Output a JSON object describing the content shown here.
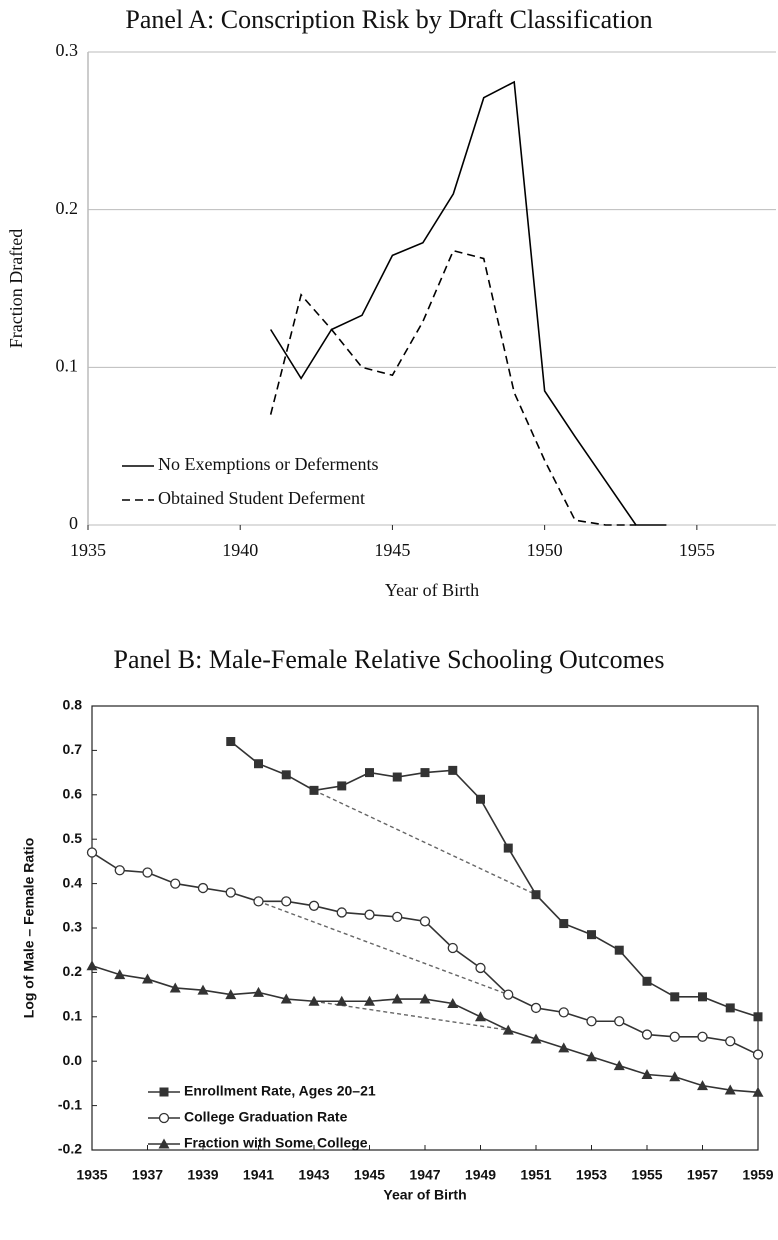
{
  "chart_data": [
    {
      "type": "line",
      "title": "Panel A: Conscription Risk by Draft Classification",
      "xlabel": "Year of Birth",
      "ylabel": "Fraction Drafted",
      "xlim": [
        1935,
        1957.6
      ],
      "xticks": [
        1935,
        1940,
        1945,
        1950,
        1955
      ],
      "ylim": [
        0,
        0.3
      ],
      "yticks": [
        {
          "value": 0,
          "label": "0"
        },
        0.1,
        0.2,
        0.3
      ],
      "grid": true,
      "frame": false,
      "legend": "lower left",
      "series": [
        {
          "name": "No Exemptions or Deferments",
          "color": "#000000",
          "line_style": "solid",
          "marker": "none",
          "x": [
            1941,
            1942,
            1943,
            1944,
            1945,
            1946,
            1947,
            1948,
            1949,
            1950,
            1951,
            1952,
            1953,
            1954
          ],
          "values": [
            0.124,
            0.093,
            0.124,
            0.133,
            0.171,
            0.179,
            0.21,
            0.271,
            0.281,
            0.085,
            0.056,
            0.028,
            0,
            0
          ]
        },
        {
          "name": "Obtained Student Deferment",
          "color": "#000000",
          "line_style": "dashed",
          "marker": "none",
          "x": [
            1941,
            1942,
            1943,
            1944,
            1945,
            1946,
            1947,
            1948,
            1949,
            1950,
            1951,
            1952,
            1953
          ],
          "values": [
            0.07,
            0.146,
            0.124,
            0.1,
            0.095,
            0.129,
            0.174,
            0.169,
            0.084,
            0.041,
            0.003,
            0,
            0
          ]
        }
      ]
    },
    {
      "type": "line",
      "title": "Panel B: Male-Female Relative Schooling Outcomes",
      "xlabel": "Year of Birth",
      "ylabel": "Log of Male – Female Ratio",
      "xlim": [
        1935,
        1959
      ],
      "xticks": [
        1935,
        1937,
        1939,
        1941,
        1943,
        1945,
        1947,
        1949,
        1951,
        1953,
        1955,
        1957,
        1959
      ],
      "ylim": [
        -0.2,
        0.8
      ],
      "yticks": [
        -0.2,
        -0.1,
        {
          "value": 0,
          "label": "0.0"
        },
        0.1,
        0.2,
        0.3,
        0.4,
        0.5,
        0.6,
        0.7,
        0.8
      ],
      "grid": false,
      "frame": true,
      "legend": "lower left",
      "series": [
        {
          "name": "Enrollment Rate, Ages 20–21",
          "color": "#333333",
          "line_style": "solid",
          "marker": "square",
          "x": [
            1940,
            1941,
            1942,
            1943,
            1944,
            1945,
            1946,
            1947,
            1948,
            1949,
            1950,
            1951,
            1952,
            1953,
            1954,
            1955,
            1956,
            1957,
            1958,
            1959
          ],
          "values": [
            0.72,
            0.67,
            0.645,
            0.61,
            0.62,
            0.65,
            0.64,
            0.65,
            0.655,
            0.59,
            0.48,
            0.375,
            0.31,
            0.285,
            0.25,
            0.18,
            0.145,
            0.145,
            0.12,
            0.1
          ]
        },
        {
          "name": "College Graduation Rate",
          "color": "#333333",
          "line_style": "solid",
          "marker": "circle",
          "x": [
            1935,
            1936,
            1937,
            1938,
            1939,
            1940,
            1941,
            1942,
            1943,
            1944,
            1945,
            1946,
            1947,
            1948,
            1949,
            1950,
            1951,
            1952,
            1953,
            1954,
            1955,
            1956,
            1957,
            1958,
            1959
          ],
          "values": [
            0.47,
            0.43,
            0.425,
            0.4,
            0.39,
            0.38,
            0.36,
            0.36,
            0.35,
            0.335,
            0.33,
            0.325,
            0.315,
            0.255,
            0.21,
            0.15,
            0.12,
            0.11,
            0.09,
            0.09,
            0.06,
            0.055,
            0.055,
            0.045,
            0.015
          ]
        },
        {
          "name": "Fraction with Some College",
          "color": "#333333",
          "line_style": "solid",
          "marker": "triangle",
          "x": [
            1935,
            1936,
            1937,
            1938,
            1939,
            1940,
            1941,
            1942,
            1943,
            1944,
            1945,
            1946,
            1947,
            1948,
            1949,
            1950,
            1951,
            1952,
            1953,
            1954,
            1955,
            1956,
            1957,
            1958,
            1959
          ],
          "values": [
            0.215,
            0.195,
            0.185,
            0.165,
            0.16,
            0.15,
            0.155,
            0.14,
            0.135,
            0.135,
            0.135,
            0.14,
            0.14,
            0.13,
            0.1,
            0.07,
            0.05,
            0.03,
            0.01,
            -0.01,
            -0.03,
            -0.035,
            -0.055,
            -0.065,
            -0.07
          ]
        }
      ],
      "dashed_segments": [
        {
          "series": 0,
          "x": [
            1943,
            1951
          ]
        },
        {
          "series": 1,
          "x": [
            1941,
            1950
          ]
        },
        {
          "series": 2,
          "x": [
            1943,
            1950
          ]
        }
      ]
    }
  ]
}
